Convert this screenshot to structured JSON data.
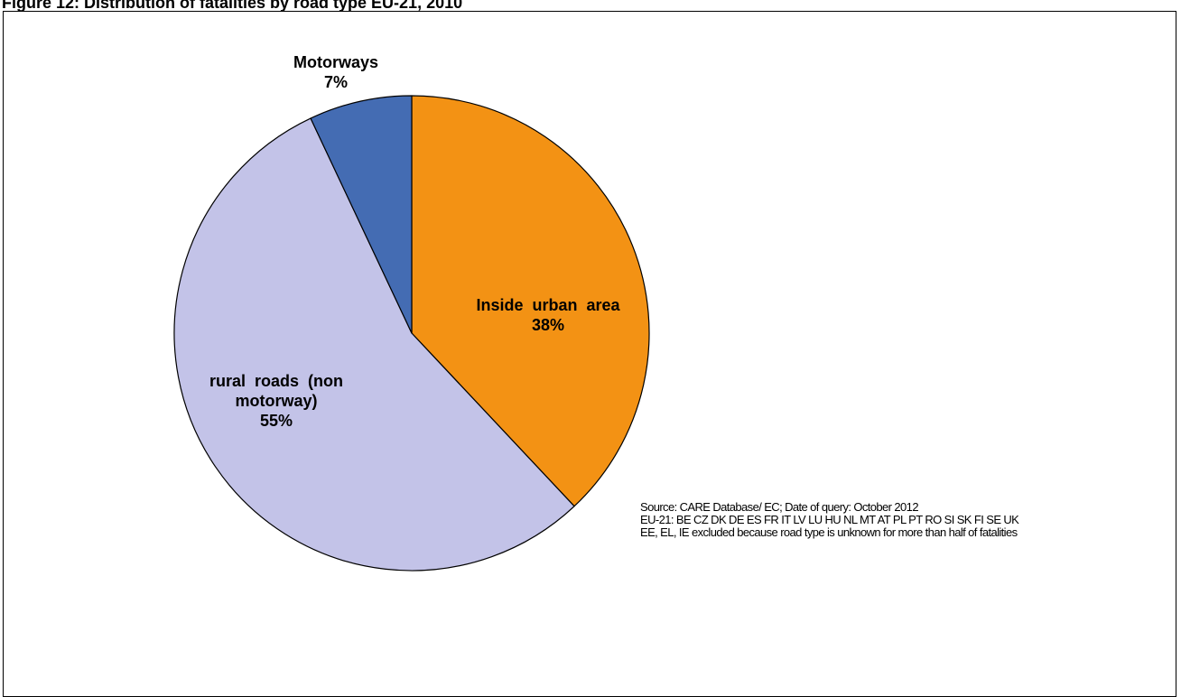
{
  "caption": "Figure 12: Distribution of fatalities by road type EU-21, 2010",
  "chart_data": {
    "type": "pie",
    "title": "",
    "categories": [
      "Inside urban area",
      "rural roads (non motorway)",
      "Motorways"
    ],
    "values": [
      38,
      55,
      7
    ],
    "value_labels": [
      "38%",
      "55%",
      "7%"
    ],
    "colors": [
      "#F39214",
      "#C3C3E8",
      "#446CB3"
    ],
    "slice_labels": {
      "Motorways": [
        "Motorways",
        "7%"
      ],
      "Inside urban area": [
        "Inside  urban  area",
        "38%"
      ],
      "rural roads (non motorway)": [
        "rural  roads  (non",
        "motorway)",
        "55%"
      ]
    },
    "start_angle_deg": 0,
    "direction": "clockwise",
    "legend": "none",
    "annotations": [
      "Source: CARE Database/ EC; Date of query: October 2012",
      "EU-21: BE CZ DK DE ES FR IT LV LU HU NL MT AT PL PT RO SI SK FI SE UK",
      "EE, EL, IE excluded because road type is unknown for more than half of fatalities"
    ]
  }
}
